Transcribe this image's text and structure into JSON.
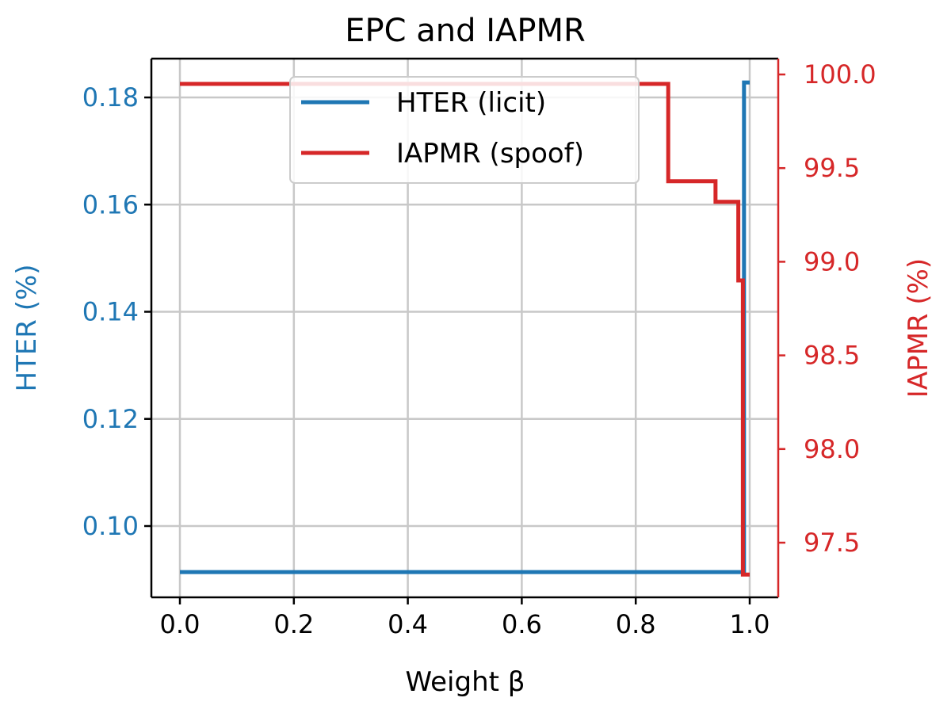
{
  "chart_data": {
    "type": "line",
    "title": "EPC and IAPMR",
    "xlabel": "Weight β",
    "ylabel_left": "HTER (%)",
    "ylabel_right": "IAPMR (%)",
    "xlim": [
      -0.05,
      1.05
    ],
    "ylim_left": [
      0.0865,
      0.187
    ],
    "ylim_right": [
      97.15,
      100.08
    ],
    "x_ticks": [
      "0.0",
      "0.2",
      "0.4",
      "0.6",
      "0.8",
      "1.0"
    ],
    "y_left_ticks": [
      "0.10",
      "0.12",
      "0.14",
      "0.16",
      "0.18"
    ],
    "y_right_ticks": [
      "97.5",
      "98.0",
      "98.5",
      "99.0",
      "99.5",
      "100.0"
    ],
    "grid": true,
    "legend_position": "top-center",
    "colors": {
      "left": "#1f77b4",
      "right": "#d62728"
    },
    "series": [
      {
        "name": "HTER (licit)",
        "axis": "left",
        "color": "#1f77b4",
        "x": [
          0.0,
          0.99,
          0.99,
          1.0
        ],
        "y": [
          0.0914,
          0.0914,
          0.1828,
          0.1828
        ]
      },
      {
        "name": "IAPMR (spoof)",
        "axis": "right",
        "color": "#d62728",
        "x": [
          0.0,
          0.857,
          0.857,
          0.94,
          0.94,
          0.98,
          0.98,
          0.988,
          0.988,
          1.0
        ],
        "y": [
          99.95,
          99.95,
          99.43,
          99.43,
          99.32,
          99.32,
          98.9,
          98.9,
          97.33,
          97.33
        ]
      }
    ]
  }
}
